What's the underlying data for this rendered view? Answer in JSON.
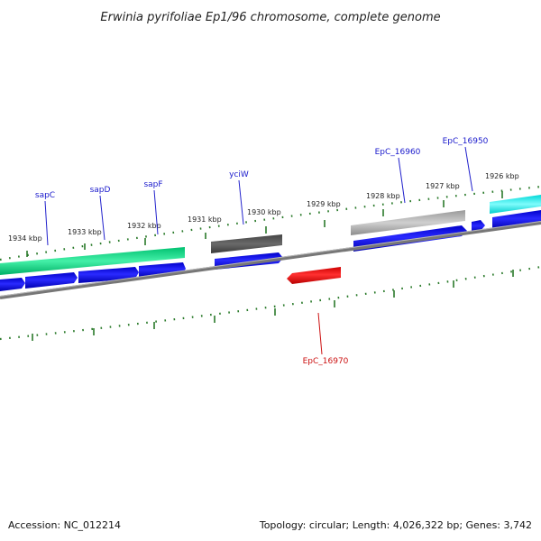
{
  "title": "Erwinia pyrifoliae Ep1/96 chromosome, complete genome",
  "footer": {
    "accession": "Accession: NC_012214",
    "stats": "Topology: circular; Length: 4,026,322 bp; Genes: 3,742"
  },
  "ticks": [
    "1934 kbp",
    "1933 kbp",
    "1932 kbp",
    "1931 kbp",
    "1930 kbp",
    "1929 kbp",
    "1928 kbp",
    "1927 kbp",
    "1926 kbp"
  ],
  "gene_labels": {
    "sapC": "sapC",
    "sapD": "sapD",
    "sapF": "sapF",
    "yciW": "yciW",
    "EpC_16960": "EpC_16960",
    "EpC_16950": "EpC_16950",
    "EpC_16970": "EpC_16970"
  },
  "colors": {
    "backbone": "#8a8a8a",
    "cds": "#1010e0",
    "green": "#22dd88",
    "dark": "#555555",
    "gray": "#aaaaaa",
    "cyan": "#22eeee",
    "red": "#ee1111",
    "tick": "#2a7a2a"
  }
}
